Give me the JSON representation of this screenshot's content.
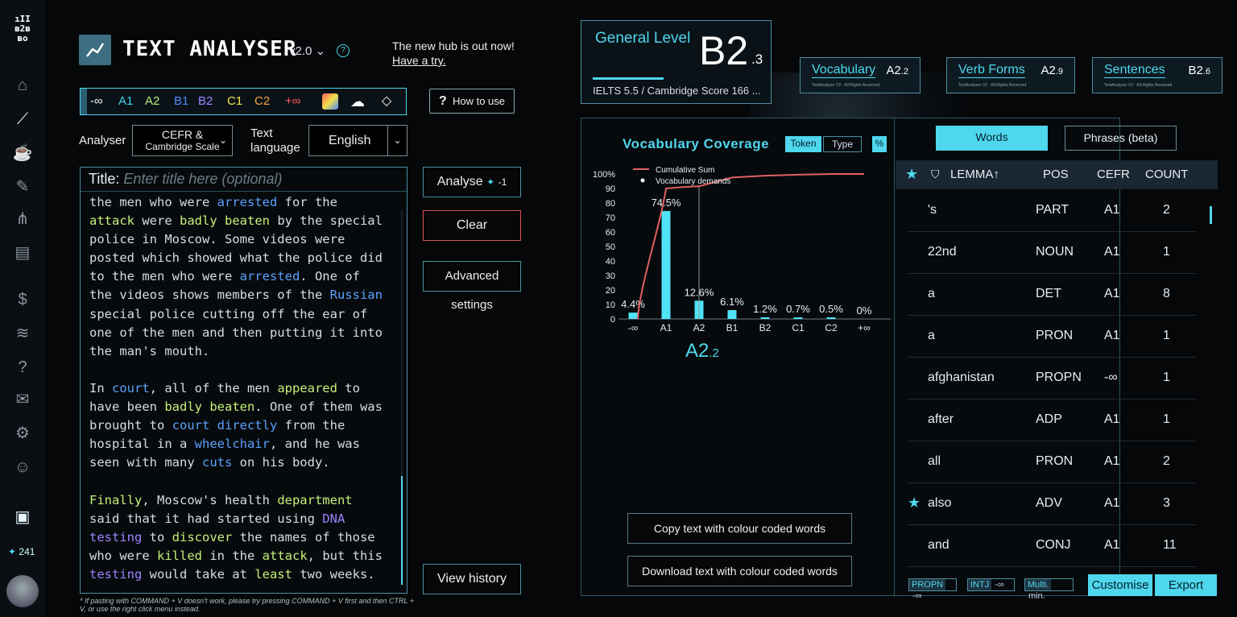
{
  "nav": {
    "logo_lines": [
      "ıII",
      "ʙ2ʙ",
      "ʙo"
    ],
    "credit_count": "241"
  },
  "header": {
    "title": "TEXT ANALYSER",
    "version": "v2.0",
    "help": "?",
    "hub_line1": "The new hub is out now!",
    "hub_link": "Have a try."
  },
  "levels": {
    "items": [
      {
        "label": "-∞",
        "color": "#ffffff"
      },
      {
        "label": "A1",
        "color": "#3fd3e8"
      },
      {
        "label": "A2",
        "color": "#b7f07a"
      },
      {
        "label": "B1",
        "color": "#4f86ff"
      },
      {
        "label": "B2",
        "color": "#9a83ff"
      },
      {
        "label": "C1",
        "color": "#f0e24a"
      },
      {
        "label": "C2",
        "color": "#f2a23c"
      },
      {
        "label": "+∞",
        "color": "#ff5a5a"
      }
    ]
  },
  "how_to_use": "How to use",
  "analyser": {
    "label": "Analyser",
    "value_line1": "CEFR &",
    "value_line2": "Cambridge Scale",
    "text_language_label_1": "Text",
    "text_language_label_2": "language",
    "language": "English"
  },
  "editor": {
    "title_label": "Title:",
    "title_placeholder": "Enter title here (optional)"
  },
  "actions": {
    "analyse": "Analyse",
    "analyse_cost": "-1",
    "clear": "Clear",
    "advanced": "Advanced settings",
    "history": "View history"
  },
  "footnote": "* If pasting with COMMAND + V doesn't work, please try pressing  COMMAND + V first and then CTRL + V, or use the right click menu instead.",
  "general": {
    "label": "General Level",
    "level": "B2",
    "sub": ".3",
    "ielts": "IELTS 5.5 / Cambridge Score 166 ..."
  },
  "metrics": [
    {
      "name": "Vocabulary",
      "level": "A2",
      "sub": ".2"
    },
    {
      "name": "Verb Forms",
      "level": "A2",
      "sub": ".9"
    },
    {
      "name": "Sentences",
      "level": "B2",
      "sub": ".6"
    }
  ],
  "metric_fineprint": "TextAnalyser V2 · All Rights Reserved",
  "coverage": {
    "title": "Vocabulary Coverage",
    "token": "Token",
    "type": "Type",
    "percent": "%",
    "result_level": "A2",
    "result_sub": ".2"
  },
  "chart_data": {
    "type": "bar",
    "categories": [
      "-∞",
      "A1",
      "A2",
      "B1",
      "B2",
      "C1",
      "C2",
      "+∞"
    ],
    "series": [
      {
        "name": "Vocabulary demands",
        "values": [
          4.4,
          74.5,
          12.6,
          6.1,
          1.2,
          0.7,
          0.5,
          0
        ]
      },
      {
        "name": "Cumulative Sum",
        "values": [
          4.4,
          78.9,
          91.5,
          97.6,
          98.8,
          99.5,
          100,
          100
        ]
      }
    ],
    "labels": [
      "4.4%",
      "74.5%",
      "12.6%",
      "6.1%",
      "1.2%",
      "0.7%",
      "0.5%",
      "0%"
    ],
    "yticks": [
      "100%",
      "90",
      "80",
      "70",
      "60",
      "50",
      "40",
      "30",
      "20",
      "10",
      "0"
    ],
    "ylim": [
      0,
      100
    ],
    "legend": [
      "Cumulative Sum",
      "Vocabulary demands"
    ],
    "legend_position": "top-left",
    "colors": {
      "bar": "#4fe3f6",
      "line": "#e06060"
    }
  },
  "copy_btn": "Copy text with colour coded words",
  "download_btn": "Download text with colour coded words",
  "tabs": {
    "words": "Words",
    "phrases": "Phrases (beta)"
  },
  "table": {
    "headers": {
      "lemma": "LEMMA↑",
      "pos": "POS",
      "cefr": "CEFR",
      "count": "COUNT"
    },
    "rows": [
      {
        "lemma": "'s",
        "pos": "PART",
        "cefr": "A1",
        "count": "2",
        "star": ""
      },
      {
        "lemma": "22nd",
        "pos": "NOUN",
        "cefr": "A1",
        "count": "1",
        "star": ""
      },
      {
        "lemma": "a",
        "pos": "DET",
        "cefr": "A1",
        "count": "8",
        "star": ""
      },
      {
        "lemma": "a",
        "pos": "PRON",
        "cefr": "A1",
        "count": "1",
        "star": ""
      },
      {
        "lemma": "afghanistan",
        "pos": "PROPN",
        "cefr": "-∞",
        "count": "1",
        "star": ""
      },
      {
        "lemma": "after",
        "pos": "ADP",
        "cefr": "A1",
        "count": "1",
        "star": ""
      },
      {
        "lemma": "all",
        "pos": "PRON",
        "cefr": "A1",
        "count": "2",
        "star": ""
      },
      {
        "lemma": "also",
        "pos": "ADV",
        "cefr": "A1",
        "count": "3",
        "star": "★"
      },
      {
        "lemma": "and",
        "pos": "CONJ",
        "cefr": "A1",
        "count": "11",
        "star": ""
      }
    ]
  },
  "chips": [
    {
      "k": "PROPN",
      "v": "-∞"
    },
    {
      "k": "INTJ",
      "v": "-∞"
    },
    {
      "k": "Multi.",
      "v": "min."
    }
  ],
  "customise": "Customise",
  "export": "Export"
}
